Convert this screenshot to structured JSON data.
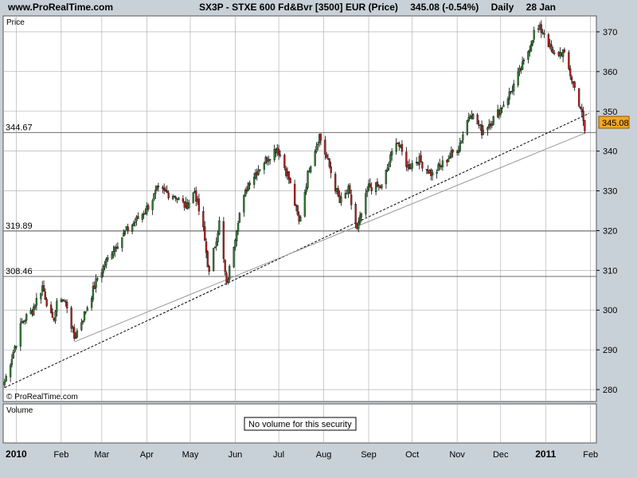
{
  "header": {
    "site": "www.ProRealTime.com",
    "symbol": "SX3P - STXE 600 Fd&Bvr [3500] EUR (Price)",
    "change": "345.08 (-0.54%)",
    "period": "Daily",
    "date": "28 Jan"
  },
  "price_panel": {
    "label": "Price",
    "watermark": "© ProRealTime.com",
    "current_price_tag": "345.08",
    "horizontal_levels": [
      344.67,
      319.89,
      308.46
    ],
    "horizontal_level_labels": [
      "344.67",
      "319.89",
      "308.46"
    ]
  },
  "volume_panel": {
    "label": "Volume",
    "message": "No volume for this security"
  },
  "colors": {
    "background": "#c9d1d8",
    "panel": "#ffffff",
    "grid": "#a8a8a8",
    "up_candle": "#2e7d32",
    "down_candle": "#b71c1c",
    "price_tag_bg": "#f5a623",
    "dotted_trendline": "#000000",
    "thin_trendline": "#999999"
  },
  "chart_data": {
    "type": "line",
    "title": "SX3P - STXE 600 Fd&Bvr [3500] EUR (Price)",
    "ylabel": "Price",
    "ylim": [
      277,
      374
    ],
    "y_ticks": [
      280,
      290,
      300,
      310,
      320,
      330,
      340,
      350,
      360,
      370
    ],
    "x_ticks": [
      "2010",
      "Feb",
      "Mar",
      "Apr",
      "May",
      "Jun",
      "Jul",
      "Aug",
      "Sep",
      "Oct",
      "Nov",
      "Dec",
      "2011",
      "Feb"
    ],
    "x_tick_dates": [
      "2010-01-01",
      "2010-02-01",
      "2010-03-01",
      "2010-04-01",
      "2010-05-01",
      "2010-06-01",
      "2010-07-01",
      "2010-08-01",
      "2010-09-01",
      "2010-10-01",
      "2010-11-01",
      "2010-12-01",
      "2011-01-01",
      "2011-02-01"
    ],
    "x_range": [
      "2009-12-23",
      "2011-02-05"
    ],
    "series": [
      {
        "values": [
          [
            "2009-12-24",
            282
          ],
          [
            "2010-01-05",
            297
          ],
          [
            "2010-01-12",
            300
          ],
          [
            "2010-01-19",
            306
          ],
          [
            "2010-01-26",
            297
          ],
          [
            "2010-01-31",
            304
          ],
          [
            "2010-02-05",
            301
          ],
          [
            "2010-02-10",
            293
          ],
          [
            "2010-02-17",
            299
          ],
          [
            "2010-02-26",
            308
          ],
          [
            "2010-03-08",
            315
          ],
          [
            "2010-03-18",
            320
          ],
          [
            "2010-03-31",
            325
          ],
          [
            "2010-04-08",
            330
          ],
          [
            "2010-04-20",
            329
          ],
          [
            "2010-04-28",
            326
          ],
          [
            "2010-05-04",
            330
          ],
          [
            "2010-05-10",
            320
          ],
          [
            "2010-05-14",
            309
          ],
          [
            "2010-05-21",
            322
          ],
          [
            "2010-05-26",
            306
          ],
          [
            "2010-06-03",
            323
          ],
          [
            "2010-06-10",
            332
          ],
          [
            "2010-06-20",
            337
          ],
          [
            "2010-06-30",
            341
          ],
          [
            "2010-07-08",
            333
          ],
          [
            "2010-07-15",
            322
          ],
          [
            "2010-07-22",
            336
          ],
          [
            "2010-07-29",
            344
          ],
          [
            "2010-08-05",
            336
          ],
          [
            "2010-08-12",
            327
          ],
          [
            "2010-08-18",
            330
          ],
          [
            "2010-08-24",
            320
          ],
          [
            "2010-09-01",
            331
          ],
          [
            "2010-09-10",
            331
          ],
          [
            "2010-09-20",
            343
          ],
          [
            "2010-09-28",
            336
          ],
          [
            "2010-10-05",
            338
          ],
          [
            "2010-10-15",
            334
          ],
          [
            "2010-10-25",
            338
          ],
          [
            "2010-11-02",
            341
          ],
          [
            "2010-11-10",
            350
          ],
          [
            "2010-11-18",
            345
          ],
          [
            "2010-11-28",
            349
          ],
          [
            "2010-12-08",
            355
          ],
          [
            "2010-12-18",
            363
          ],
          [
            "2010-12-25",
            371
          ],
          [
            "2010-12-31",
            370
          ],
          [
            "2011-01-06",
            364
          ],
          [
            "2011-01-13",
            365
          ],
          [
            "2011-01-20",
            357
          ],
          [
            "2011-01-25",
            351
          ],
          [
            "2011-01-28",
            345.08
          ]
        ]
      },
      {
        "values": [
          [
            "2009-12-24",
            280.5
          ],
          [
            "2011-01-31",
            349.5
          ]
        ]
      },
      {
        "values": [
          [
            "2010-02-10",
            292
          ],
          [
            "2011-01-28",
            344.5
          ]
        ]
      }
    ]
  }
}
